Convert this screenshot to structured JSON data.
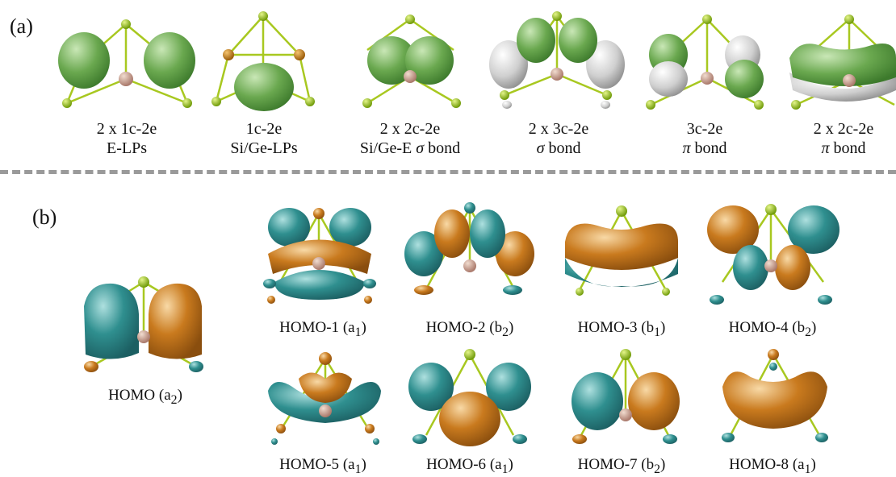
{
  "panel_a": {
    "label": "(a)",
    "items": [
      {
        "line1": "2 x 1c-2e",
        "line2": "E-LPs"
      },
      {
        "line1": "1c-2e",
        "line2": "Si/Ge-LPs"
      },
      {
        "line1": "2 x 2c-2e",
        "line2": "Si/Ge-E σ bond"
      },
      {
        "line1": "2 x 3c-2e",
        "line2": "σ bond"
      },
      {
        "line1": "3c-2e",
        "line2": "π bond"
      },
      {
        "line1": "2 x 2c-2e",
        "line2": "π bond"
      }
    ]
  },
  "panel_b": {
    "label": "(b)",
    "orbitals": [
      {
        "name": "HOMO",
        "sym": "a",
        "sub": "2"
      },
      {
        "name": "HOMO-1",
        "sym": "a",
        "sub": "1"
      },
      {
        "name": "HOMO-2",
        "sym": "b",
        "sub": "2"
      },
      {
        "name": "HOMO-3",
        "sym": "b",
        "sub": "1"
      },
      {
        "name": "HOMO-4",
        "sym": "b",
        "sub": "2"
      },
      {
        "name": "HOMO-5",
        "sym": "a",
        "sub": "1"
      },
      {
        "name": "HOMO-6",
        "sym": "a",
        "sub": "1"
      },
      {
        "name": "HOMO-7",
        "sym": "b",
        "sub": "2"
      },
      {
        "name": "HOMO-8",
        "sym": "a",
        "sub": "1"
      }
    ]
  },
  "colors": {
    "green_lobe": "#6aa84f",
    "white_lobe": "#d8d8d8",
    "teal_lobe": "#2f8f8f",
    "orange_lobe": "#c97a1e",
    "bond": "#a8c820",
    "center_atom": "#c9a08a",
    "e_atom": "#8cc010",
    "si_atom": "#c87810"
  }
}
